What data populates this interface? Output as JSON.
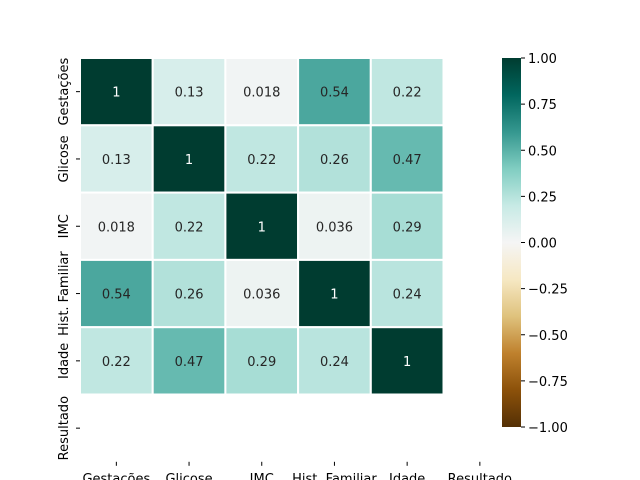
{
  "chart_data": {
    "type": "heatmap",
    "x_labels": [
      "Gestações",
      "Glicose",
      "IMC",
      "Hist. Familiar",
      "Idade",
      "Resultado"
    ],
    "y_labels": [
      "Gestações",
      "Glicose",
      "IMC",
      "Hist. Familiar",
      "Idade",
      "Resultado"
    ],
    "values": [
      [
        1,
        0.13,
        0.018,
        0.54,
        0.22,
        null
      ],
      [
        0.13,
        1,
        0.22,
        0.26,
        0.47,
        null
      ],
      [
        0.018,
        0.22,
        1,
        0.036,
        0.29,
        null
      ],
      [
        0.54,
        0.26,
        0.036,
        1,
        0.24,
        null
      ],
      [
        0.22,
        0.47,
        0.29,
        0.24,
        1,
        null
      ],
      [
        null,
        null,
        null,
        null,
        null,
        null
      ]
    ],
    "cell_labels": [
      [
        "1",
        "0.13",
        "0.018",
        "0.54",
        "0.22",
        ""
      ],
      [
        "0.13",
        "1",
        "0.22",
        "0.26",
        "0.47",
        ""
      ],
      [
        "0.018",
        "0.22",
        "1",
        "0.036",
        "0.29",
        ""
      ],
      [
        "0.54",
        "0.26",
        "0.036",
        "1",
        "0.24",
        ""
      ],
      [
        "0.22",
        "0.47",
        "0.29",
        "0.24",
        "1",
        ""
      ],
      [
        "",
        "",
        "",
        "",
        "",
        ""
      ]
    ],
    "colormap": "BrBG",
    "vmin": -1,
    "vmax": 1,
    "colorbar_ticks": [
      "1.00",
      "0.75",
      "0.50",
      "0.25",
      "0.00",
      "−0.25",
      "−0.50",
      "−0.75",
      "−1.00"
    ],
    "colorbar_tick_values": [
      1,
      0.75,
      0.5,
      0.25,
      0,
      -0.25,
      -0.5,
      -0.75,
      -1
    ],
    "cell_border_color": "#ffffff",
    "title": "",
    "xlabel": "",
    "ylabel": ""
  }
}
